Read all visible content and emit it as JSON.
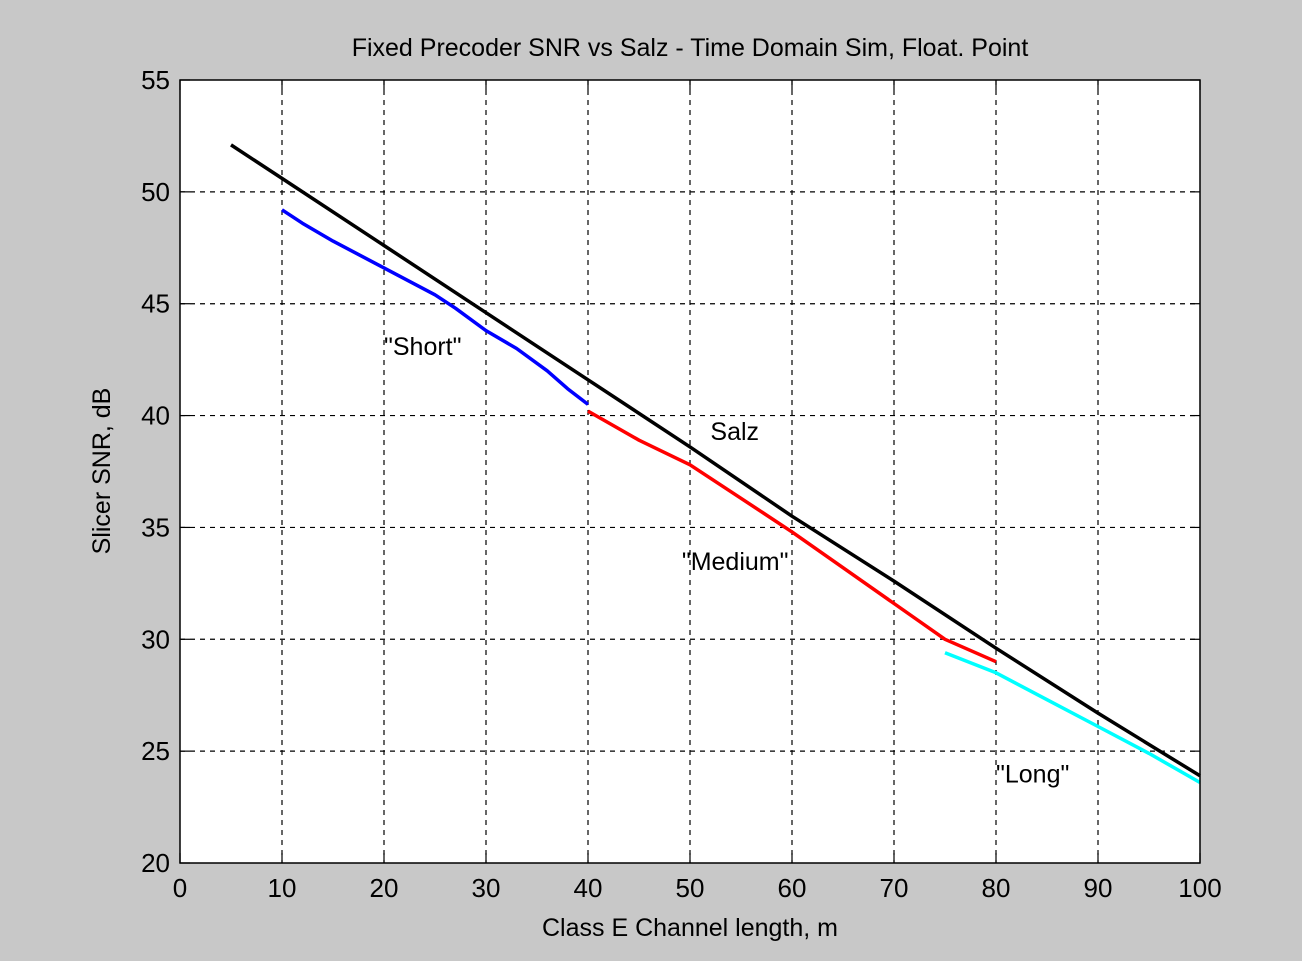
{
  "chart_data": {
    "type": "line",
    "title": "Fixed Precoder SNR vs Salz - Time Domain Sim, Float. Point",
    "xlabel": "Class E Channel length, m",
    "ylabel": "Slicer SNR, dB",
    "xlim": [
      0,
      100
    ],
    "ylim": [
      20,
      55
    ],
    "xticks": [
      0,
      10,
      20,
      30,
      40,
      50,
      60,
      70,
      80,
      90,
      100
    ],
    "yticks": [
      20,
      25,
      30,
      35,
      40,
      45,
      50,
      55
    ],
    "grid": true,
    "series": [
      {
        "color": "#000000",
        "x": [
          5,
          10,
          20,
          30,
          40,
          50,
          60,
          70,
          80,
          90,
          100
        ],
        "y": [
          52.1,
          50.6,
          47.6,
          44.6,
          41.6,
          38.6,
          35.5,
          32.6,
          29.6,
          26.7,
          23.9
        ]
      },
      {
        "color": "#0000ff",
        "x": [
          10,
          12,
          15,
          20,
          25,
          27,
          30,
          33,
          36,
          38,
          40
        ],
        "y": [
          49.2,
          48.6,
          47.8,
          46.6,
          45.4,
          44.8,
          43.8,
          43.0,
          42.0,
          41.2,
          40.5
        ]
      },
      {
        "color": "#ff0000",
        "x": [
          40,
          45,
          50,
          55,
          60,
          65,
          70,
          75,
          80
        ],
        "y": [
          40.2,
          38.9,
          37.8,
          36.3,
          34.8,
          33.2,
          31.6,
          30.0,
          29.0
        ]
      },
      {
        "color": "#00ffff",
        "x": [
          75,
          80,
          85,
          90,
          95,
          100
        ],
        "y": [
          29.4,
          28.5,
          27.3,
          26.1,
          24.9,
          23.6
        ]
      }
    ],
    "annotations": [
      {
        "text": "\"Short\"",
        "x": 20,
        "y": 42.7
      },
      {
        "text": "Salz",
        "x": 52,
        "y": 38.9
      },
      {
        "text": "\"Medium\"",
        "x": 49.2,
        "y": 33.1
      },
      {
        "text": "\"Long\"",
        "x": 80,
        "y": 23.6
      }
    ]
  }
}
